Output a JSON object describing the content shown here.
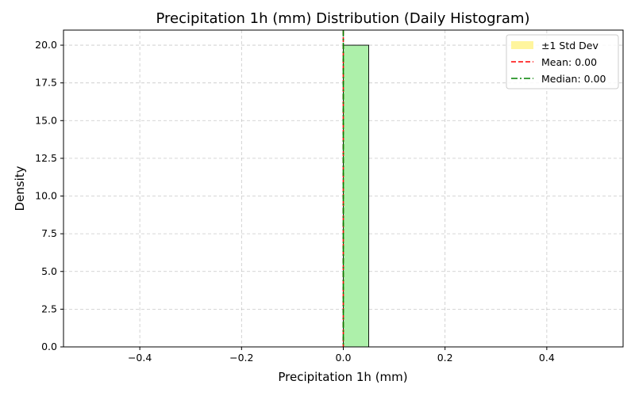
{
  "chart_data": {
    "type": "bar",
    "title": "Precipitation 1h (mm) Distribution (Daily Histogram)",
    "xlabel": "Precipitation 1h (mm)",
    "ylabel": "Density",
    "xlim": [
      -0.55,
      0.55
    ],
    "ylim": [
      0,
      21
    ],
    "xticks": [
      -0.4,
      -0.2,
      0.0,
      0.2,
      0.4
    ],
    "xtick_labels": [
      "−0.4",
      "−0.2",
      "0.0",
      "0.2",
      "0.4"
    ],
    "yticks": [
      0,
      2.5,
      5,
      7.5,
      10,
      12.5,
      15,
      17.5,
      20
    ],
    "ytick_labels": [
      "0.0",
      "2.5",
      "5.0",
      "7.5",
      "10.0",
      "12.5",
      "15.0",
      "17.5",
      "20.0"
    ],
    "grid": true,
    "legend_position": "top-right",
    "bins": {
      "range": [
        -0.5,
        0.5
      ],
      "count": 20,
      "densities": [
        0,
        0,
        0,
        0,
        0,
        0,
        0,
        0,
        0,
        0,
        20,
        0,
        0,
        0,
        0,
        0,
        0,
        0,
        0,
        0
      ]
    },
    "std_band": {
      "label": "±1 Std Dev",
      "low": 0.0,
      "high": 0.0,
      "color": "#fff59d"
    },
    "mean_line": {
      "label": "Mean: 0.00",
      "value": 0.0,
      "color": "#ff0000",
      "style": "dashed"
    },
    "median_line": {
      "label": "Median: 0.00",
      "value": 0.0,
      "color": "#008000",
      "style": "dashdot"
    },
    "bar_color": "#adf0aa",
    "bar_edge_color": "#000000"
  }
}
